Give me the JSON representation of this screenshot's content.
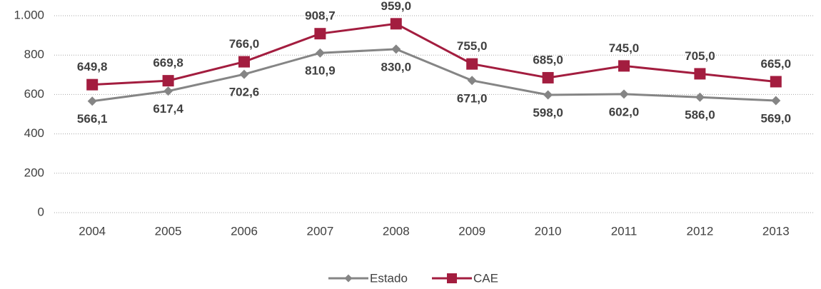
{
  "chart_data": {
    "type": "line",
    "categories": [
      "2004",
      "2005",
      "2006",
      "2007",
      "2008",
      "2009",
      "2010",
      "2011",
      "2012",
      "2013"
    ],
    "series": [
      {
        "name": "Estado",
        "color": "#858585",
        "marker": "diamond",
        "values": [
          566.1,
          617.4,
          702.6,
          810.9,
          830.0,
          671.0,
          598.0,
          602.0,
          586.0,
          569.0
        ],
        "value_labels": [
          "566,1",
          "617,4",
          "702,6",
          "810,9",
          "830,0",
          "671,0",
          "598,0",
          "602,0",
          "586,0",
          "569,0"
        ]
      },
      {
        "name": "CAE",
        "color": "#a31d3f",
        "marker": "square",
        "values": [
          649.8,
          669.8,
          766.0,
          908.7,
          959.0,
          755.0,
          685.0,
          745.0,
          705.0,
          665.0
        ],
        "value_labels": [
          "649,8",
          "669,8",
          "766,0",
          "908,7",
          "959,0",
          "755,0",
          "685,0",
          "745,0",
          "705,0",
          "665,0"
        ]
      }
    ],
    "ylim": [
      0,
      1000
    ],
    "yticks": [
      0,
      200,
      400,
      600,
      800,
      {
        "value": 1000,
        "label": "1.000"
      }
    ],
    "grid": true,
    "legend": "bottom"
  }
}
